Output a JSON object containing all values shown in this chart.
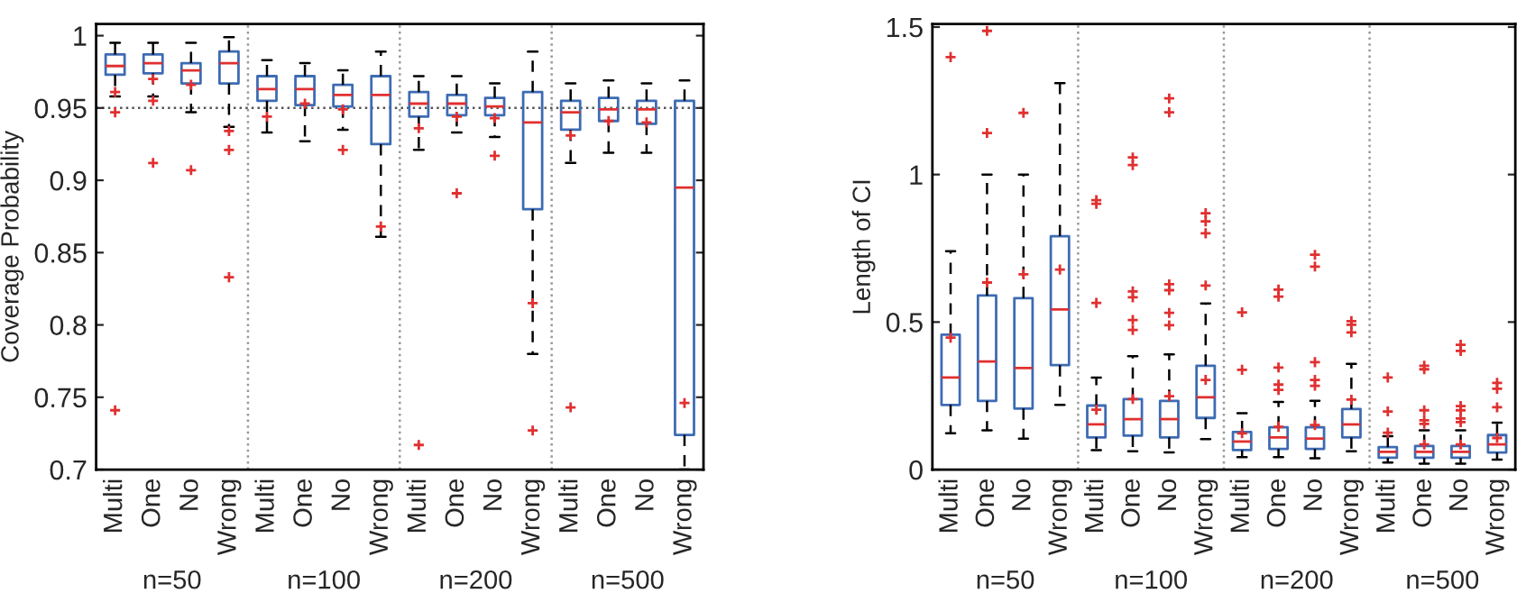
{
  "chart_data": [
    {
      "type": "box",
      "ylabel": "Coverage Probability",
      "categories": [
        "Multi",
        "One",
        "No",
        "Wrong",
        "Multi",
        "One",
        "No",
        "Wrong",
        "Multi",
        "One",
        "No",
        "Wrong",
        "Multi",
        "One",
        "No",
        "Wrong"
      ],
      "ylim": [
        0.7,
        1.008
      ],
      "yticks": [
        0.7,
        0.75,
        0.8,
        0.85,
        0.9,
        0.95,
        1
      ],
      "color": "#3d6bb3",
      "annotations": [
        "n=50",
        "n=100",
        "n=200",
        "n=500"
      ],
      "ref_lines": [
        {
          "axis": "y",
          "value": 0.95,
          "line_style": "dotted",
          "color": "#555555"
        }
      ],
      "boxes": [
        {
          "low": 0.958,
          "q1": 0.973,
          "median": 0.979,
          "q3": 0.987,
          "high": 0.995,
          "outliers": [
            0.961,
            0.947,
            0.741
          ]
        },
        {
          "low": 0.958,
          "q1": 0.974,
          "median": 0.981,
          "q3": 0.987,
          "high": 0.995,
          "outliers": [
            0.97,
            0.955,
            0.912
          ]
        },
        {
          "low": 0.947,
          "q1": 0.967,
          "median": 0.976,
          "q3": 0.981,
          "high": 0.995,
          "outliers": [
            0.966,
            0.907
          ]
        },
        {
          "low": 0.937,
          "q1": 0.967,
          "median": 0.981,
          "q3": 0.989,
          "high": 0.999,
          "outliers": [
            0.934,
            0.921,
            0.833
          ]
        },
        {
          "low": 0.933,
          "q1": 0.955,
          "median": 0.963,
          "q3": 0.972,
          "high": 0.983,
          "outliers": [
            0.944
          ]
        },
        {
          "low": 0.927,
          "q1": 0.952,
          "median": 0.963,
          "q3": 0.972,
          "high": 0.981,
          "outliers": [
            0.953
          ]
        },
        {
          "low": 0.935,
          "q1": 0.951,
          "median": 0.959,
          "q3": 0.966,
          "high": 0.976,
          "outliers": [
            0.949,
            0.921
          ]
        },
        {
          "low": 0.861,
          "q1": 0.925,
          "median": 0.959,
          "q3": 0.972,
          "high": 0.989,
          "outliers": [
            0.868
          ]
        },
        {
          "low": 0.921,
          "q1": 0.944,
          "median": 0.953,
          "q3": 0.961,
          "high": 0.972,
          "outliers": [
            0.936,
            0.717
          ]
        },
        {
          "low": 0.933,
          "q1": 0.945,
          "median": 0.953,
          "q3": 0.959,
          "high": 0.972,
          "outliers": [
            0.944,
            0.891
          ]
        },
        {
          "low": 0.93,
          "q1": 0.945,
          "median": 0.951,
          "q3": 0.957,
          "high": 0.967,
          "outliers": [
            0.943,
            0.917
          ]
        },
        {
          "low": 0.78,
          "q1": 0.88,
          "median": 0.94,
          "q3": 0.961,
          "high": 0.989,
          "outliers": [
            0.815,
            0.727
          ]
        },
        {
          "low": 0.912,
          "q1": 0.935,
          "median": 0.947,
          "q3": 0.955,
          "high": 0.967,
          "outliers": [
            0.931,
            0.743
          ]
        },
        {
          "low": 0.919,
          "q1": 0.941,
          "median": 0.949,
          "q3": 0.957,
          "high": 0.969,
          "outliers": [
            0.941
          ]
        },
        {
          "low": 0.919,
          "q1": 0.939,
          "median": 0.949,
          "q3": 0.955,
          "high": 0.967,
          "outliers": [
            0.94
          ]
        },
        {
          "low": 0.7,
          "q1": 0.724,
          "median": 0.895,
          "q3": 0.955,
          "high": 0.969,
          "outliers": [
            0.746
          ]
        }
      ]
    },
    {
      "type": "box",
      "ylabel": "Length of CI",
      "categories": [
        "Multi",
        "One",
        "No",
        "Wrong",
        "Multi",
        "One",
        "No",
        "Wrong",
        "Multi",
        "One",
        "No",
        "Wrong",
        "Multi",
        "One",
        "No",
        "Wrong"
      ],
      "ylim": [
        0,
        1.51
      ],
      "yticks": [
        0,
        0.5,
        1,
        1.5
      ],
      "color": "#3d6bb3",
      "annotations": [
        "n=50",
        "n=100",
        "n=200",
        "n=500"
      ],
      "boxes": [
        {
          "low": 0.123,
          "q1": 0.219,
          "median": 0.312,
          "q3": 0.457,
          "high": 0.74,
          "outliers": [
            1.398,
            0.447
          ]
        },
        {
          "low": 0.133,
          "q1": 0.233,
          "median": 0.366,
          "q3": 0.59,
          "high": 1.0,
          "outliers": [
            1.487,
            1.141,
            0.634
          ]
        },
        {
          "low": 0.105,
          "q1": 0.207,
          "median": 0.344,
          "q3": 0.581,
          "high": 1.0,
          "outliers": [
            1.209,
            0.662
          ]
        },
        {
          "low": 0.219,
          "q1": 0.354,
          "median": 0.543,
          "q3": 0.791,
          "high": 1.31,
          "outliers": [
            0.678
          ]
        },
        {
          "low": 0.066,
          "q1": 0.109,
          "median": 0.153,
          "q3": 0.217,
          "high": 0.312,
          "outliers": [
            0.913,
            0.901,
            0.565,
            0.203
          ]
        },
        {
          "low": 0.062,
          "q1": 0.115,
          "median": 0.171,
          "q3": 0.239,
          "high": 0.384,
          "outliers": [
            1.058,
            1.032,
            0.604,
            0.584,
            0.507,
            0.473,
            0.239
          ]
        },
        {
          "low": 0.058,
          "q1": 0.109,
          "median": 0.171,
          "q3": 0.233,
          "high": 0.39,
          "outliers": [
            1.258,
            1.211,
            0.628,
            0.608,
            0.531,
            0.489,
            0.249
          ]
        },
        {
          "low": 0.103,
          "q1": 0.175,
          "median": 0.245,
          "q3": 0.352,
          "high": 0.563,
          "outliers": [
            0.869,
            0.841,
            0.801,
            0.624,
            0.304
          ]
        },
        {
          "low": 0.042,
          "q1": 0.066,
          "median": 0.095,
          "q3": 0.127,
          "high": 0.191,
          "outliers": [
            0.533,
            0.338,
            0.123
          ]
        },
        {
          "low": 0.042,
          "q1": 0.07,
          "median": 0.109,
          "q3": 0.143,
          "high": 0.229,
          "outliers": [
            0.61,
            0.586,
            0.346,
            0.288,
            0.27,
            0.145
          ]
        },
        {
          "low": 0.038,
          "q1": 0.07,
          "median": 0.105,
          "q3": 0.143,
          "high": 0.233,
          "outliers": [
            0.728,
            0.688,
            0.364,
            0.304,
            0.284,
            0.151
          ]
        },
        {
          "low": 0.062,
          "q1": 0.109,
          "median": 0.153,
          "q3": 0.205,
          "high": 0.358,
          "outliers": [
            0.503,
            0.491,
            0.465,
            0.237
          ]
        },
        {
          "low": 0.024,
          "q1": 0.04,
          "median": 0.06,
          "q3": 0.076,
          "high": 0.113,
          "outliers": [
            0.312,
            0.197,
            0.125
          ]
        },
        {
          "low": 0.02,
          "q1": 0.04,
          "median": 0.06,
          "q3": 0.08,
          "high": 0.133,
          "outliers": [
            0.352,
            0.34,
            0.201,
            0.167,
            0.155,
            0.085
          ]
        },
        {
          "low": 0.02,
          "q1": 0.04,
          "median": 0.06,
          "q3": 0.08,
          "high": 0.133,
          "outliers": [
            0.423,
            0.402,
            0.215,
            0.201,
            0.173,
            0.161,
            0.085
          ]
        },
        {
          "low": 0.034,
          "q1": 0.058,
          "median": 0.085,
          "q3": 0.117,
          "high": 0.159,
          "outliers": [
            0.294,
            0.274,
            0.211,
            0.107
          ]
        }
      ]
    }
  ]
}
